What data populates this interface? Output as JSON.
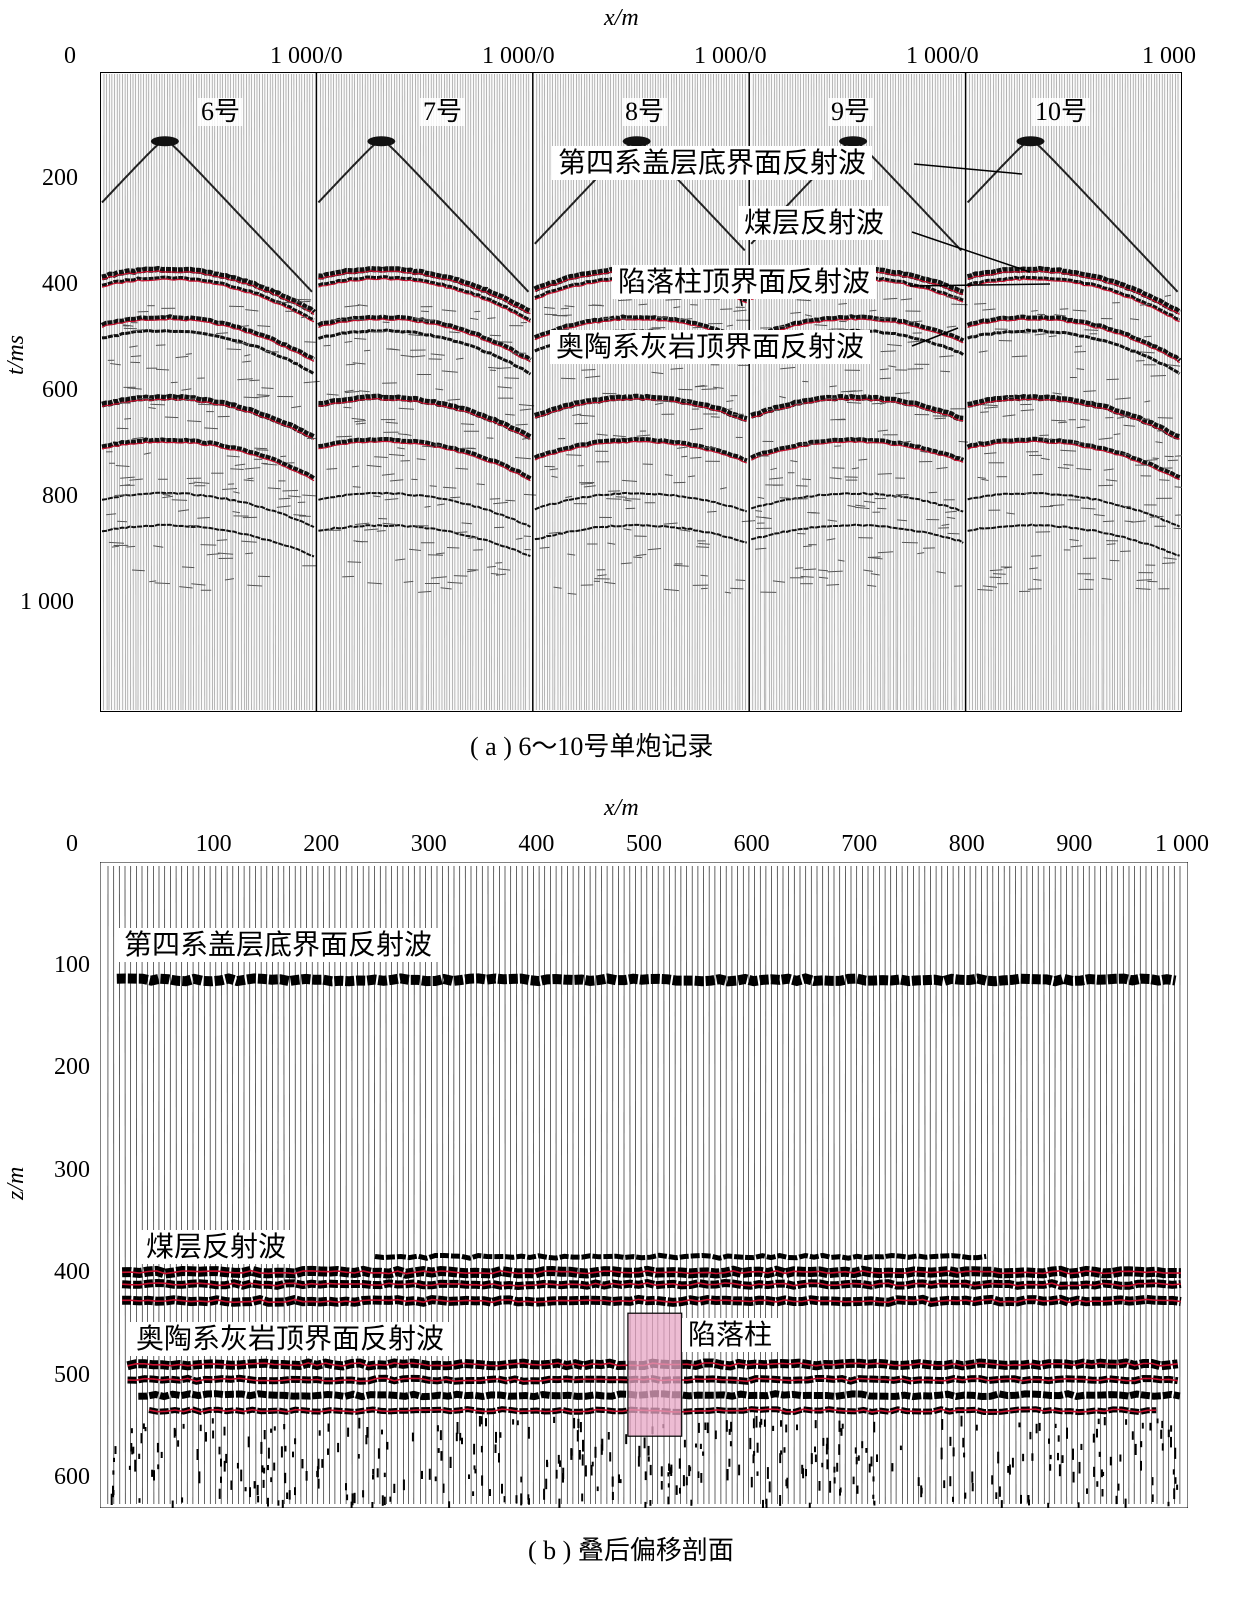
{
  "figure_a": {
    "xaxis_title": "x/m",
    "yaxis_title": "t/ms",
    "x_tick_labels": [
      "0",
      "1 000/0",
      "1 000/0",
      "1 000/0",
      "1 000/0",
      "1 000"
    ],
    "y_tick_labels": [
      "200",
      "400",
      "600",
      "800",
      "1 000"
    ],
    "y_ticks": [
      200,
      400,
      600,
      800,
      1000
    ],
    "y_range": [
      0,
      1200
    ],
    "shots": [
      "6号",
      "7号",
      "8号",
      "9号",
      "10号"
    ],
    "annotations": [
      "第四系盖层底界面反射波",
      "煤层反射波",
      "陷落柱顶界面反射波",
      "奥陶系灰岩顶界面反射波"
    ],
    "caption": "( a ) 6～10号单炮记录"
  },
  "figure_b": {
    "xaxis_title": "x/m",
    "yaxis_title": "z/m",
    "x_tick_labels": [
      "0",
      "100",
      "200",
      "300",
      "400",
      "500",
      "600",
      "700",
      "800",
      "900",
      "1 000"
    ],
    "x_ticks": [
      0,
      100,
      200,
      300,
      400,
      500,
      600,
      700,
      800,
      900,
      1000
    ],
    "y_tick_labels": [
      "100",
      "200",
      "300",
      "400",
      "500",
      "600"
    ],
    "y_ticks": [
      100,
      200,
      300,
      400,
      500,
      600
    ],
    "y_range": [
      0,
      630
    ],
    "annotations": [
      "第四系盖层底界面反射波",
      "煤层反射波",
      "奥陶系灰岩顶界面反射波",
      "陷落柱"
    ],
    "collapse_column": {
      "x_range": [
        485,
        535
      ],
      "z_range": [
        440,
        560
      ]
    },
    "caption": "( b ) 叠后偏移剖面"
  },
  "colors": {
    "trace": "#000000",
    "peak_fill": "#1a1a1a",
    "red_event": "#c8102e",
    "collapse_fill": "#e7a6c4"
  }
}
